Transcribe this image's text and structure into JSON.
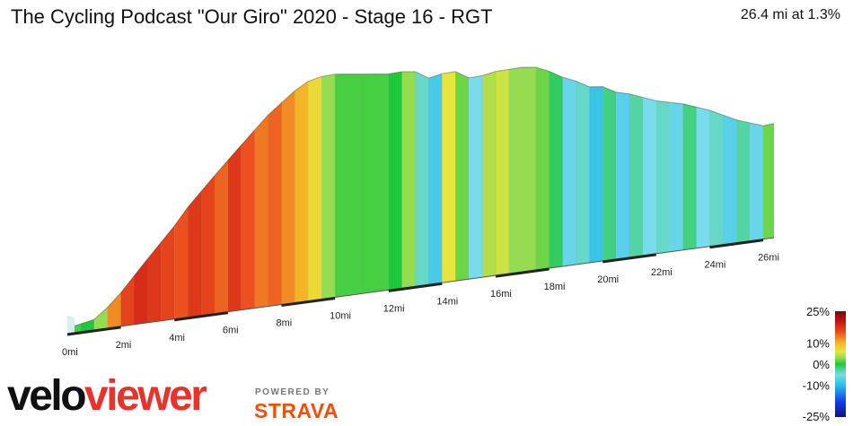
{
  "header": {
    "title": "The Cycling Podcast \"Our Giro\" 2020 - Stage 16 - RGT",
    "summary": "26.4 mi at 1.3%"
  },
  "branding": {
    "logo_part1": "velo",
    "logo_part2": "viewer",
    "powered_by": "POWERED BY",
    "strava": "STRAVA",
    "colors": {
      "logo_dark": "#111111",
      "logo_red": "#e8322b",
      "strava_orange": "#fc4c02"
    }
  },
  "chart_data": {
    "type": "area",
    "description_type": "3d-elevation-profile",
    "x_unit": "mi",
    "x_range": [
      0,
      26.4
    ],
    "x_ticks": [
      0,
      2,
      4,
      6,
      8,
      10,
      12,
      14,
      16,
      18,
      20,
      22,
      24,
      26
    ],
    "x_tick_labels": [
      "0mi",
      "2mi",
      "4mi",
      "6mi",
      "8mi",
      "10mi",
      "12mi",
      "14mi",
      "16mi",
      "18mi",
      "20mi",
      "22mi",
      "24mi",
      "26mi"
    ],
    "elevation_profile": {
      "x": [
        0,
        0.5,
        1.0,
        1.5,
        2.0,
        2.5,
        3.0,
        3.5,
        4.0,
        4.5,
        5.0,
        5.5,
        6.0,
        6.5,
        7.0,
        7.5,
        8.0,
        8.5,
        9.0,
        9.5,
        10.0,
        11.0,
        12.0,
        12.5,
        13.0,
        13.5,
        14.0,
        14.5,
        15.0,
        15.5,
        16.0,
        16.5,
        17.0,
        17.5,
        18.0,
        18.5,
        19.0,
        19.5,
        20.0,
        20.5,
        21.0,
        21.5,
        22.0,
        22.5,
        23.0,
        23.5,
        24.0,
        24.5,
        25.0,
        25.5,
        26.0,
        26.4
      ],
      "rel_height": [
        0.02,
        0.03,
        0.04,
        0.08,
        0.13,
        0.19,
        0.25,
        0.31,
        0.37,
        0.44,
        0.5,
        0.56,
        0.62,
        0.68,
        0.74,
        0.8,
        0.85,
        0.9,
        0.94,
        0.96,
        0.97,
        0.97,
        0.97,
        0.98,
        0.98,
        0.95,
        0.97,
        0.98,
        0.95,
        0.96,
        0.98,
        0.99,
        1.0,
        1.0,
        0.98,
        0.95,
        0.93,
        0.9,
        0.9,
        0.87,
        0.86,
        0.84,
        0.82,
        0.81,
        0.8,
        0.78,
        0.76,
        0.73,
        0.7,
        0.68,
        0.66,
        0.67
      ],
      "grade_pct": [
        1,
        0,
        3,
        12,
        16,
        18,
        17,
        16,
        15,
        17,
        16,
        14,
        17,
        15,
        13,
        14,
        12,
        10,
        7,
        3,
        1,
        1,
        0,
        3,
        -4,
        -8,
        6,
        2,
        -5,
        4,
        5,
        3,
        3,
        2,
        -1,
        -6,
        -4,
        -9,
        -2,
        -7,
        -3,
        -5,
        -4,
        -6,
        -2,
        -5,
        -4,
        -7,
        -3,
        -6,
        2,
        3
      ]
    },
    "legend": {
      "title": "",
      "labels": [
        "25%",
        "10%",
        "0%",
        "-10%",
        "-25%"
      ],
      "values": [
        25,
        10,
        0,
        -10,
        -25
      ]
    },
    "grid": false
  }
}
